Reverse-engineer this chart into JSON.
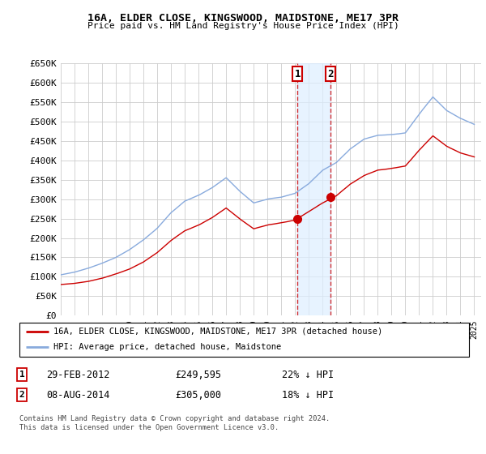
{
  "title": "16A, ELDER CLOSE, KINGSWOOD, MAIDSTONE, ME17 3PR",
  "subtitle": "Price paid vs. HM Land Registry's House Price Index (HPI)",
  "ylabel_ticks": [
    "£0",
    "£50K",
    "£100K",
    "£150K",
    "£200K",
    "£250K",
    "£300K",
    "£350K",
    "£400K",
    "£450K",
    "£500K",
    "£550K",
    "£600K",
    "£650K"
  ],
  "ytick_vals": [
    0,
    50000,
    100000,
    150000,
    200000,
    250000,
    300000,
    350000,
    400000,
    450000,
    500000,
    550000,
    600000,
    650000
  ],
  "ylim": [
    0,
    650000
  ],
  "xlim_start": 1995.0,
  "xlim_end": 2025.5,
  "hpi_color": "#88aadd",
  "price_color": "#cc0000",
  "vline_color": "#cc0000",
  "background_color": "#ffffff",
  "grid_color": "#cccccc",
  "transaction1_x": 2012.17,
  "transaction1_y": 249595,
  "transaction2_x": 2014.58,
  "transaction2_y": 305000,
  "legend_red_label": "16A, ELDER CLOSE, KINGSWOOD, MAIDSTONE, ME17 3PR (detached house)",
  "legend_blue_label": "HPI: Average price, detached house, Maidstone",
  "table_row1": [
    "1",
    "29-FEB-2012",
    "£249,595",
    "22% ↓ HPI"
  ],
  "table_row2": [
    "2",
    "08-AUG-2014",
    "£305,000",
    "18% ↓ HPI"
  ],
  "footnote": "Contains HM Land Registry data © Crown copyright and database right 2024.\nThis data is licensed under the Open Government Licence v3.0."
}
